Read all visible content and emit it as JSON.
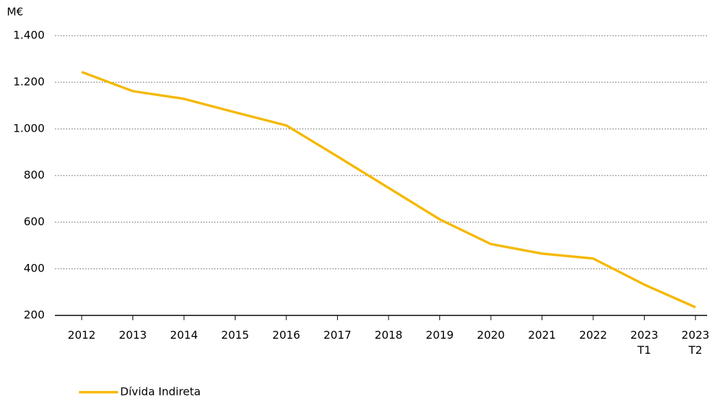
{
  "chart_data": {
    "type": "line",
    "y_unit": "M€",
    "categories": [
      "2012",
      "2013",
      "2014",
      "2015",
      "2016",
      "2017",
      "2018",
      "2019",
      "2020",
      "2021",
      "2022",
      "2023 T1",
      "2023 T2"
    ],
    "series": [
      {
        "name": "Dívida Indireta",
        "color": "#f5b800",
        "values": [
          1244,
          1162,
          1129,
          1071,
          1015,
          882,
          747,
          612,
          506,
          465,
          444,
          332,
          235
        ]
      }
    ],
    "ylim": [
      200,
      1400
    ],
    "yticks": [
      200,
      400,
      600,
      800,
      {
        "value": 1000,
        "label": "1.000"
      },
      {
        "value": 1200,
        "label": "1.200"
      },
      {
        "value": 1400,
        "label": "1.400"
      }
    ],
    "grid": true,
    "legend": "bottom-left"
  }
}
